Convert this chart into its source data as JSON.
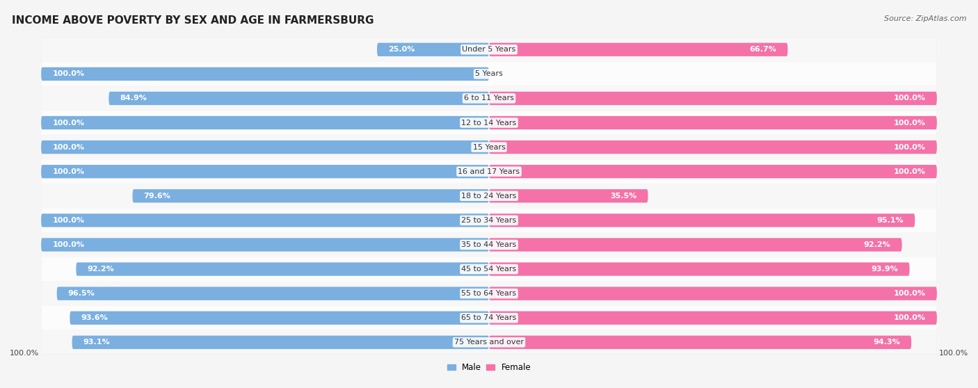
{
  "title": "INCOME ABOVE POVERTY BY SEX AND AGE IN FARMERSBURG",
  "source": "Source: ZipAtlas.com",
  "categories": [
    "Under 5 Years",
    "5 Years",
    "6 to 11 Years",
    "12 to 14 Years",
    "15 Years",
    "16 and 17 Years",
    "18 to 24 Years",
    "25 to 34 Years",
    "35 to 44 Years",
    "45 to 54 Years",
    "55 to 64 Years",
    "65 to 74 Years",
    "75 Years and over"
  ],
  "male": [
    25.0,
    100.0,
    84.9,
    100.0,
    100.0,
    100.0,
    79.6,
    100.0,
    100.0,
    92.2,
    96.5,
    93.6,
    93.1
  ],
  "female": [
    66.7,
    0.0,
    100.0,
    100.0,
    100.0,
    100.0,
    35.5,
    95.1,
    92.2,
    93.9,
    100.0,
    100.0,
    94.3
  ],
  "male_color": "#7aafe0",
  "female_color": "#f472a8",
  "row_odd_color": "#efefef",
  "row_even_color": "#f9f9f9",
  "row_border_color": "#d8d8d8",
  "bg_color": "#f5f5f5",
  "title_fontsize": 11,
  "label_fontsize": 8.0,
  "category_fontsize": 8.0,
  "legend_fontsize": 8.5,
  "source_fontsize": 8.0
}
